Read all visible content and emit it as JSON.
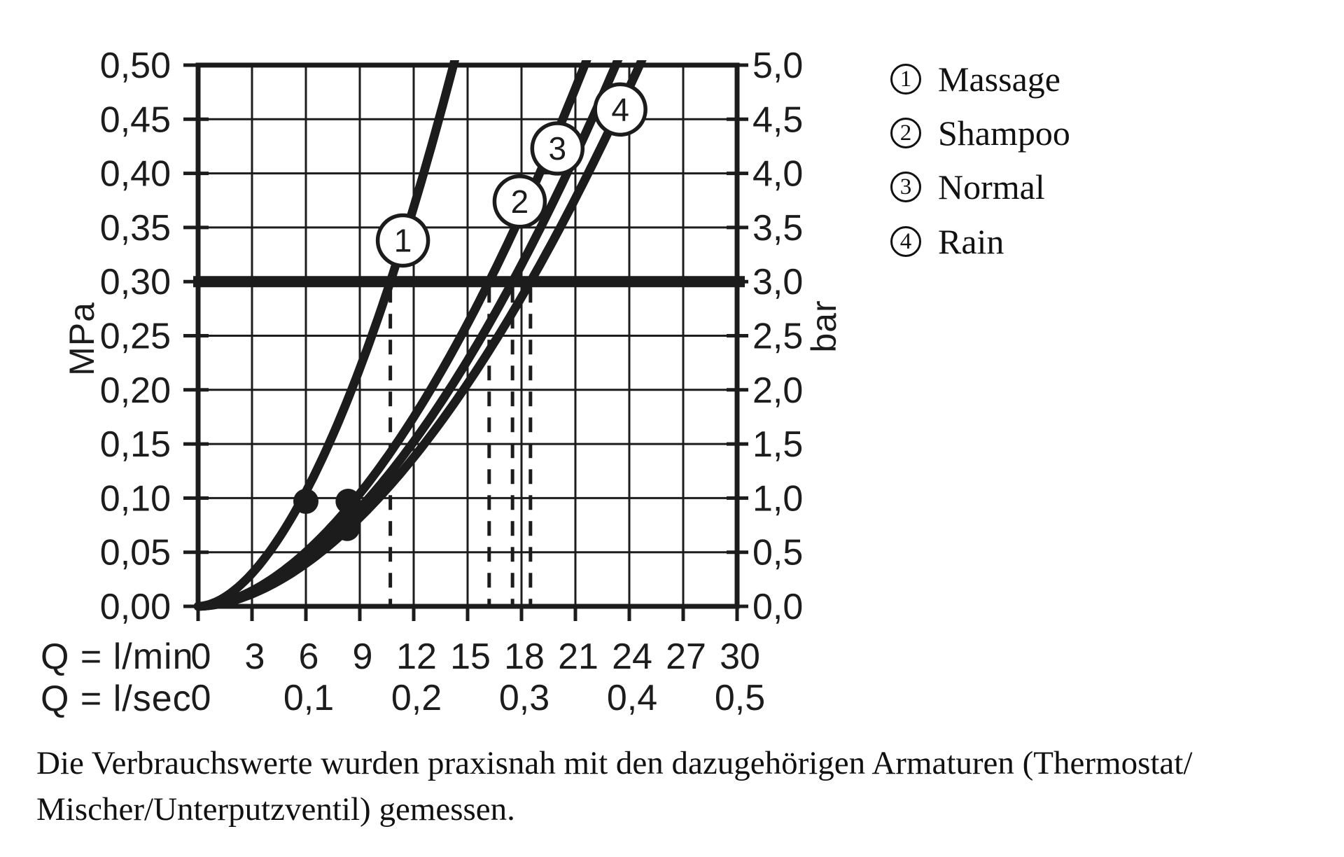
{
  "page": {
    "background": "#ffffff",
    "ink": "#1c1c1c"
  },
  "chart_data": {
    "type": "line",
    "title": "",
    "grid": "on",
    "x_axis": {
      "label_lmin": "Q = l/min",
      "label_lsec": "Q = l/sec",
      "min": 0,
      "max": 30,
      "ticks_lmin": [
        {
          "q": 0,
          "label": "0"
        },
        {
          "q": 3,
          "label": "3"
        },
        {
          "q": 6,
          "label": "6"
        },
        {
          "q": 9,
          "label": "9"
        },
        {
          "q": 12,
          "label": "12"
        },
        {
          "q": 15,
          "label": "15"
        },
        {
          "q": 18,
          "label": "18"
        },
        {
          "q": 21,
          "label": "21"
        },
        {
          "q": 24,
          "label": "24"
        },
        {
          "q": 27,
          "label": "27"
        },
        {
          "q": 30,
          "label": "30"
        }
      ],
      "ticks_lsec": [
        {
          "q": 0,
          "label": "0"
        },
        {
          "q": 6,
          "label": "0,1"
        },
        {
          "q": 12,
          "label": "0,2"
        },
        {
          "q": 18,
          "label": "0,3"
        },
        {
          "q": 24,
          "label": "0,4"
        },
        {
          "q": 30,
          "label": "0,5"
        }
      ]
    },
    "y_axis_left": {
      "unit": "MPa",
      "min": 0,
      "max": 0.5,
      "ticks": [
        {
          "v": 0.5,
          "label": "0,50"
        },
        {
          "v": 0.45,
          "label": "0,45"
        },
        {
          "v": 0.4,
          "label": "0,40"
        },
        {
          "v": 0.35,
          "label": "0,35"
        },
        {
          "v": 0.3,
          "label": "0,30"
        },
        {
          "v": 0.25,
          "label": "0,25"
        },
        {
          "v": 0.2,
          "label": "0,20"
        },
        {
          "v": 0.15,
          "label": "0,15"
        },
        {
          "v": 0.1,
          "label": "0,10"
        },
        {
          "v": 0.05,
          "label": "0,05"
        },
        {
          "v": 0.0,
          "label": "0,00"
        }
      ]
    },
    "y_axis_right": {
      "unit": "bar",
      "ticks": [
        {
          "v": 0.5,
          "label": "5,0"
        },
        {
          "v": 0.45,
          "label": "4,5"
        },
        {
          "v": 0.4,
          "label": "4,0"
        },
        {
          "v": 0.35,
          "label": "3,5"
        },
        {
          "v": 0.3,
          "label": "3,0"
        },
        {
          "v": 0.25,
          "label": "2,5"
        },
        {
          "v": 0.2,
          "label": "2,0"
        },
        {
          "v": 0.15,
          "label": "1,5"
        },
        {
          "v": 0.1,
          "label": "1,0"
        },
        {
          "v": 0.05,
          "label": "0,5"
        },
        {
          "v": 0.0,
          "label": "0,0"
        }
      ]
    },
    "reference_line_mpa": 0.3,
    "curves": [
      {
        "number": "1",
        "name": "Massage",
        "q_lmin_at_0_3_mpa": 10.7,
        "exponent": 1.8,
        "badge": {
          "q": 11.4,
          "p": 0.338
        }
      },
      {
        "number": "2",
        "name": "Shampoo",
        "q_lmin_at_0_3_mpa": 16.2,
        "exponent": 1.8,
        "badge": {
          "q": 17.9,
          "p": 0.374
        }
      },
      {
        "number": "3",
        "name": "Normal",
        "q_lmin_at_0_3_mpa": 17.5,
        "exponent": 1.8,
        "badge": {
          "q": 20.0,
          "p": 0.423
        }
      },
      {
        "number": "4",
        "name": "Rain",
        "q_lmin_at_0_3_mpa": 18.5,
        "exponent": 1.8,
        "badge": {
          "q": 23.5,
          "p": 0.459
        }
      }
    ],
    "measurement_dots": [
      {
        "q": 6.0,
        "p": 0.097
      },
      {
        "q": 8.35,
        "p": 0.097
      },
      {
        "q": 8.3,
        "p": 0.072
      }
    ]
  },
  "legend": {
    "items": [
      {
        "number": "1",
        "label": "Massage"
      },
      {
        "number": "2",
        "label": "Shampoo"
      },
      {
        "number": "3",
        "label": "Normal"
      },
      {
        "number": "4",
        "label": "Rain"
      }
    ]
  },
  "footnote": {
    "lines": [
      "Die Verbrauchswerte wurden praxisnah mit den dazugehörigen Armaturen (Thermostat/",
      "Mischer/Unterputzventil) gemessen."
    ]
  }
}
